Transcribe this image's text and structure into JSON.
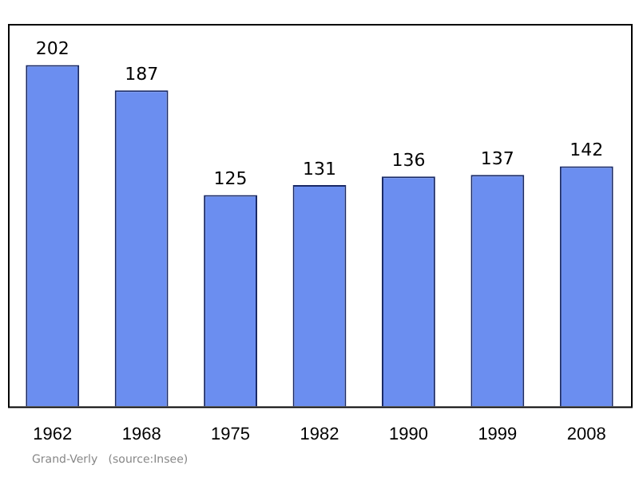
{
  "chart_data": {
    "type": "bar",
    "categories": [
      "1962",
      "1968",
      "1975",
      "1982",
      "1990",
      "1999",
      "2008"
    ],
    "values": [
      202,
      187,
      125,
      131,
      136,
      137,
      142
    ],
    "color": "#6b8ef0",
    "data_labels": true,
    "tick_labels": "x",
    "annotations": [
      "Grand-Verly   (source:Insee)"
    ]
  }
}
